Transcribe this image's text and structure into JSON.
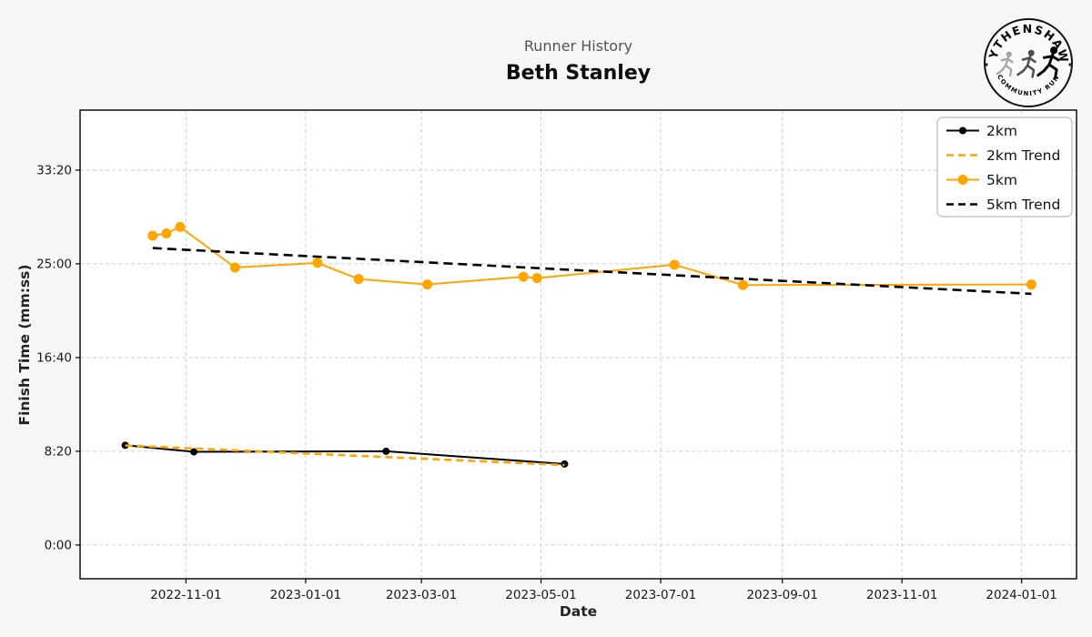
{
  "page": {
    "background": "#f7f6f4"
  },
  "header": {
    "subtitle": "Runner History",
    "title": "Beth Stanley"
  },
  "logo": {
    "arc_top": "WYTHENSHAWE",
    "arc_bottom": "COMMUNITY RUN"
  },
  "chart_data": {
    "type": "line",
    "title": "Runner History",
    "subtitle": "Beth Stanley",
    "xlabel": "Date",
    "ylabel": "Finish Time (mm:ss)",
    "grid": true,
    "legend_position": "upper right",
    "x_range": [
      "2022-09-08",
      "2024-01-29"
    ],
    "y_range_seconds": [
      -180,
      2320
    ],
    "x_ticks": [
      "2022-11-01",
      "2023-01-01",
      "2023-03-01",
      "2023-05-01",
      "2023-07-01",
      "2023-09-01",
      "2023-11-01",
      "2024-01-01"
    ],
    "y_ticks": [
      {
        "seconds": 0,
        "label": "0:00"
      },
      {
        "seconds": 500,
        "label": "8:20"
      },
      {
        "seconds": 1000,
        "label": "16:40"
      },
      {
        "seconds": 1500,
        "label": "25:00"
      },
      {
        "seconds": 2000,
        "label": "33:20"
      }
    ],
    "colors": {
      "km2": "#000000",
      "km2_trend": "#FFA500",
      "km5": "#FFA500",
      "km5_trend": "#000000"
    },
    "series": [
      {
        "name": "2km",
        "kind": "line-markers",
        "color": "#000000",
        "marker_radius": 4,
        "points": [
          {
            "date": "2022-10-01",
            "time": "8:52",
            "seconds": 532
          },
          {
            "date": "2022-11-05",
            "time": "8:17",
            "seconds": 497
          },
          {
            "date": "2023-02-11",
            "time": "8:20",
            "seconds": 500
          },
          {
            "date": "2023-05-13",
            "time": "7:12",
            "seconds": 432
          }
        ]
      },
      {
        "name": "2km Trend",
        "kind": "trend",
        "color": "#FFA500",
        "dash": "8 5",
        "points": [
          {
            "date": "2022-10-01",
            "seconds": 531
          },
          {
            "date": "2023-05-13",
            "seconds": 427
          }
        ]
      },
      {
        "name": "5km",
        "kind": "line-markers",
        "color": "#FFA500",
        "marker_radius": 5.5,
        "points": [
          {
            "date": "2022-10-15",
            "time": "27:30",
            "seconds": 1650
          },
          {
            "date": "2022-10-22",
            "time": "27:42",
            "seconds": 1662
          },
          {
            "date": "2022-10-29",
            "time": "28:17",
            "seconds": 1697
          },
          {
            "date": "2022-11-26",
            "time": "24:40",
            "seconds": 1480
          },
          {
            "date": "2023-01-07",
            "time": "25:05",
            "seconds": 1505
          },
          {
            "date": "2023-01-28",
            "time": "23:39",
            "seconds": 1419
          },
          {
            "date": "2023-03-04",
            "time": "23:10",
            "seconds": 1390
          },
          {
            "date": "2023-04-22",
            "time": "23:51",
            "seconds": 1431
          },
          {
            "date": "2023-04-29",
            "time": "23:44",
            "seconds": 1424
          },
          {
            "date": "2023-07-08",
            "time": "24:55",
            "seconds": 1495
          },
          {
            "date": "2023-08-12",
            "time": "23:07",
            "seconds": 1387
          },
          {
            "date": "2024-01-06",
            "time": "23:10",
            "seconds": 1390
          }
        ]
      },
      {
        "name": "5km Trend",
        "kind": "trend",
        "color": "#000000",
        "dash": "10 6",
        "points": [
          {
            "date": "2022-10-15",
            "seconds": 1584
          },
          {
            "date": "2024-01-06",
            "seconds": 1340
          }
        ]
      }
    ]
  }
}
